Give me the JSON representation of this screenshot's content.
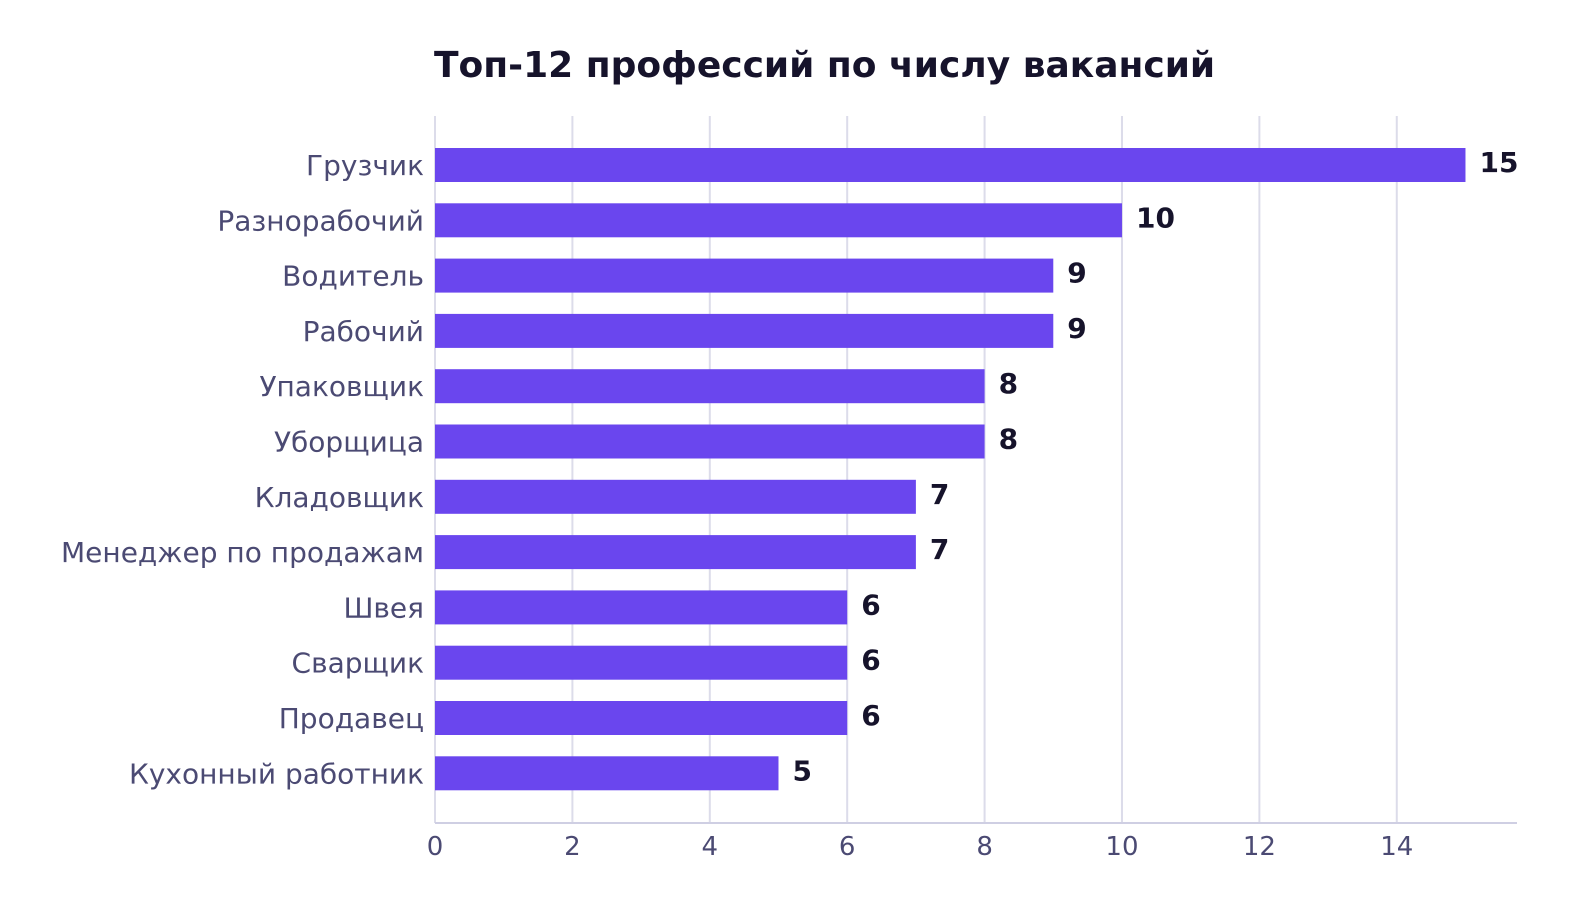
{
  "chart_data": {
    "type": "bar",
    "orientation": "horizontal",
    "title": "Топ-12 профессий по числу вакансий",
    "xlabel": "",
    "ylabel": "",
    "categories": [
      "Грузчик",
      "Разнорабочий",
      "Водитель",
      "Рабочий",
      "Упаковщик",
      "Уборщица",
      "Кладовщик",
      "Менеджер по продажам",
      "Швея",
      "Сварщик",
      "Продавец",
      "Кухонный работник"
    ],
    "values": [
      15,
      10,
      9,
      9,
      8,
      8,
      7,
      7,
      6,
      6,
      6,
      5
    ],
    "xlim": [
      0,
      15.75
    ],
    "xticks": [
      0,
      2,
      4,
      6,
      8,
      10,
      12,
      14
    ],
    "grid": "vertical",
    "data_labels": true,
    "bar_color": "#6a46ee"
  }
}
